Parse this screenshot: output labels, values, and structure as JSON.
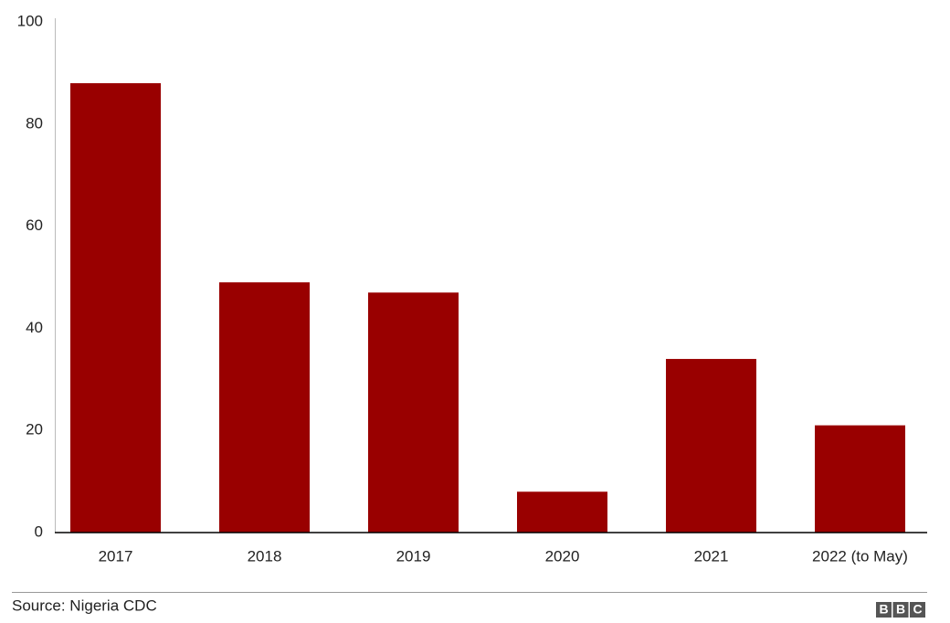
{
  "chart_data": {
    "type": "bar",
    "categories": [
      "2017",
      "2018",
      "2019",
      "2020",
      "2021",
      "2022 (to May)"
    ],
    "values": [
      88,
      49,
      47,
      8,
      34,
      21
    ],
    "color": "#990000",
    "ylim": [
      0,
      100
    ],
    "yticks": [
      0,
      20,
      40,
      60,
      80,
      100
    ],
    "grid": false,
    "source": "Source: Nigeria CDC",
    "logo": [
      "B",
      "B",
      "C"
    ]
  }
}
